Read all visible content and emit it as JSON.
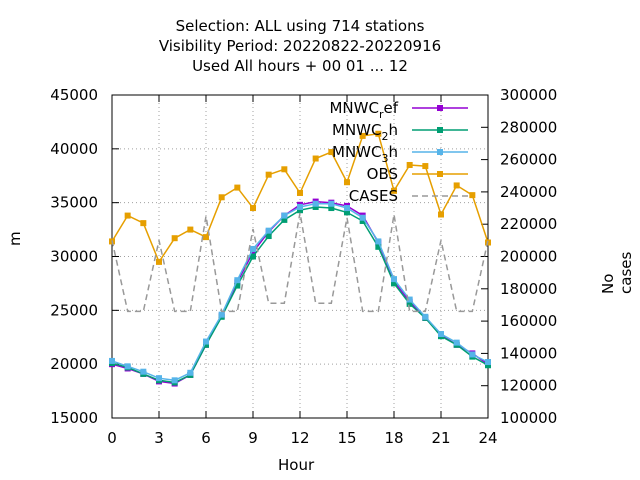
{
  "chart_data": {
    "type": "line",
    "title_lines": [
      "Selection: ALL using   714 stations",
      "Visibility   Period: 20220822-20220916",
      "Used  All hours + 00 01 ... 12"
    ],
    "xlabel": "Hour",
    "ylabel": "m",
    "y2label": "No cases",
    "xlim": [
      0,
      24
    ],
    "ylim": [
      15000,
      45000
    ],
    "y2lim": [
      100000,
      300000
    ],
    "x_ticks": [
      "0",
      "3",
      "6",
      "9",
      "12",
      "15",
      "18",
      "21",
      "24"
    ],
    "y_ticks": [
      "15000",
      "20000",
      "25000",
      "30000",
      "35000",
      "40000",
      "45000"
    ],
    "y2_ticks": [
      "100000",
      "120000",
      "140000",
      "160000",
      "180000",
      "200000",
      "220000",
      "240000",
      "260000",
      "280000",
      "300000"
    ],
    "grid": true,
    "legend_position": "top-right",
    "x": [
      0,
      1,
      2,
      3,
      4,
      5,
      6,
      7,
      8,
      9,
      10,
      11,
      12,
      13,
      14,
      15,
      16,
      17,
      18,
      19,
      20,
      21,
      22,
      23,
      24
    ],
    "series": [
      {
        "name": "MNWC_ref",
        "legend_label": {
          "base": "MNWC",
          "sub": "r",
          "rest": "ef"
        },
        "color": "#9400d3",
        "marker": "square",
        "axis": "y",
        "values": [
          20000,
          19600,
          19100,
          18400,
          18200,
          19000,
          21800,
          24500,
          27600,
          30400,
          32300,
          33800,
          34800,
          35100,
          35000,
          34700,
          33800,
          31300,
          27700,
          25800,
          24300,
          22700,
          21800,
          21000,
          20000
        ]
      },
      {
        "name": "MNWC_2h",
        "legend_label": {
          "base": "MNWC",
          "sub": "2",
          "rest": "h"
        },
        "color": "#009e73",
        "marker": "square",
        "axis": "y",
        "values": [
          20100,
          19700,
          19100,
          18500,
          18300,
          19000,
          21800,
          24400,
          27300,
          30000,
          31900,
          33400,
          34300,
          34600,
          34500,
          34100,
          33300,
          30900,
          27500,
          25600,
          24300,
          22600,
          21800,
          20700,
          19900
        ]
      },
      {
        "name": "MNWC_3h",
        "legend_label": {
          "base": "MNWC",
          "sub": "3",
          "rest": "h"
        },
        "color": "#56b4e9",
        "marker": "square",
        "axis": "y",
        "values": [
          20300,
          19800,
          19300,
          18700,
          18500,
          19200,
          22100,
          24600,
          27800,
          30700,
          32400,
          33800,
          34600,
          34900,
          34900,
          34500,
          33600,
          31400,
          27900,
          26000,
          24400,
          22800,
          22000,
          20900,
          20200
        ]
      },
      {
        "name": "OBS",
        "legend_label": {
          "base": "OBS",
          "sub": "",
          "rest": ""
        },
        "color": "#e69f00",
        "marker": "square",
        "axis": "y",
        "values": [
          31400,
          33800,
          33100,
          29500,
          31700,
          32500,
          31800,
          35500,
          36400,
          34500,
          37600,
          38100,
          35900,
          39100,
          39700,
          36900,
          41200,
          41400,
          36100,
          38500,
          38400,
          33900,
          36600,
          35700,
          31300
        ]
      },
      {
        "name": "CASES",
        "legend_label": {
          "base": "CASES",
          "sub": "",
          "rest": ""
        },
        "color": "#999999",
        "marker": "none",
        "dashed": true,
        "axis": "y2",
        "values": [
          210000,
          166000,
          166000,
          210000,
          166000,
          166000,
          225000,
          166000,
          166000,
          217000,
          171000,
          171000,
          227000,
          171000,
          171000,
          224000,
          166000,
          166000,
          226000,
          166000,
          166000,
          210000,
          166000,
          166000,
          210000
        ]
      }
    ]
  }
}
